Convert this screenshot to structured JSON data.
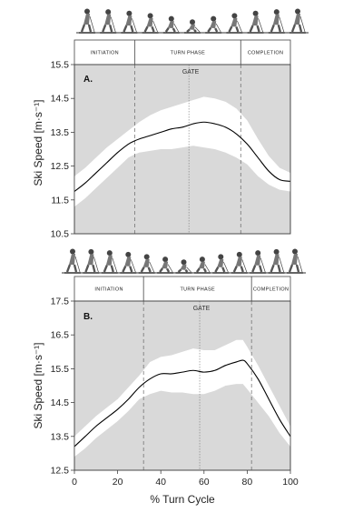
{
  "chart_data": [
    {
      "type": "line",
      "panel_label": "A.",
      "ylabel": "Ski Speed [m·s⁻¹]",
      "xlabel": "",
      "ylim": [
        10.5,
        15.5
      ],
      "xlim": [
        0,
        100
      ],
      "yticks": [
        10.5,
        11.5,
        12.5,
        13.5,
        14.5,
        15.5
      ],
      "yticklabels": [
        "10.5",
        "11.5",
        "12.5",
        "13.5",
        "14.5",
        "15.5"
      ],
      "phases": [
        {
          "label": "INITIATION",
          "start": 0,
          "end": 28
        },
        {
          "label": "TURN PHASE",
          "start": 28,
          "end": 77
        },
        {
          "label": "COMPLETION",
          "start": 77,
          "end": 100
        }
      ],
      "gate": {
        "label": "GATE",
        "x": 53
      },
      "series": [
        {
          "x": [
            0,
            5,
            10,
            15,
            20,
            25,
            28,
            30,
            35,
            40,
            45,
            50,
            55,
            60,
            65,
            70,
            75,
            80,
            85,
            90,
            95,
            100
          ],
          "mean": [
            11.75,
            12.0,
            12.3,
            12.6,
            12.9,
            13.15,
            13.25,
            13.3,
            13.4,
            13.5,
            13.6,
            13.65,
            13.75,
            13.8,
            13.75,
            13.65,
            13.45,
            13.15,
            12.75,
            12.35,
            12.1,
            12.05
          ],
          "upper": [
            12.2,
            12.45,
            12.75,
            13.05,
            13.3,
            13.55,
            13.7,
            13.8,
            14.0,
            14.15,
            14.25,
            14.35,
            14.45,
            14.55,
            14.5,
            14.4,
            14.2,
            13.85,
            13.3,
            12.8,
            12.45,
            12.3
          ],
          "lower": [
            11.3,
            11.55,
            11.85,
            12.15,
            12.45,
            12.75,
            12.85,
            12.9,
            12.95,
            13.0,
            13.0,
            13.05,
            13.1,
            13.05,
            13.0,
            12.9,
            12.75,
            12.55,
            12.2,
            11.95,
            11.8,
            11.75
          ]
        }
      ]
    },
    {
      "type": "line",
      "panel_label": "B.",
      "ylabel": "Ski Speed [m·s⁻¹]",
      "xlabel": "% Turn Cycle",
      "ylim": [
        12.5,
        17.5
      ],
      "xlim": [
        0,
        100
      ],
      "yticks": [
        12.5,
        13.5,
        14.5,
        15.5,
        16.5,
        17.5
      ],
      "yticklabels": [
        "12.5",
        "13.5",
        "14.5",
        "15.5",
        "16.5",
        "17.5"
      ],
      "xticks": [
        0,
        20,
        40,
        60,
        80,
        100
      ],
      "xticklabels": [
        "0",
        "20",
        "40",
        "60",
        "80",
        "100"
      ],
      "phases": [
        {
          "label": "INITIATION",
          "start": 0,
          "end": 32
        },
        {
          "label": "TURN PHASE",
          "start": 32,
          "end": 82
        },
        {
          "label": "COMPLETION",
          "start": 82,
          "end": 100
        }
      ],
      "gate": {
        "label": "GATE",
        "x": 58
      },
      "series": [
        {
          "x": [
            0,
            5,
            10,
            15,
            20,
            25,
            30,
            35,
            40,
            45,
            50,
            55,
            60,
            65,
            70,
            75,
            78,
            80,
            85,
            90,
            95,
            100
          ],
          "mean": [
            13.2,
            13.5,
            13.8,
            14.05,
            14.3,
            14.6,
            14.95,
            15.2,
            15.35,
            15.35,
            15.4,
            15.45,
            15.4,
            15.45,
            15.6,
            15.7,
            15.75,
            15.65,
            15.2,
            14.6,
            14.0,
            13.5
          ],
          "upper": [
            13.5,
            13.8,
            14.1,
            14.35,
            14.6,
            14.95,
            15.3,
            15.7,
            15.85,
            15.9,
            16.0,
            16.1,
            16.05,
            16.05,
            16.2,
            16.35,
            16.35,
            16.15,
            15.6,
            15.0,
            14.4,
            13.8
          ],
          "lower": [
            12.9,
            13.15,
            13.45,
            13.7,
            13.95,
            14.25,
            14.6,
            14.75,
            14.85,
            14.8,
            14.8,
            14.75,
            14.75,
            14.85,
            15.0,
            15.05,
            15.05,
            14.9,
            14.5,
            14.1,
            13.6,
            13.2
          ]
        }
      ]
    }
  ]
}
